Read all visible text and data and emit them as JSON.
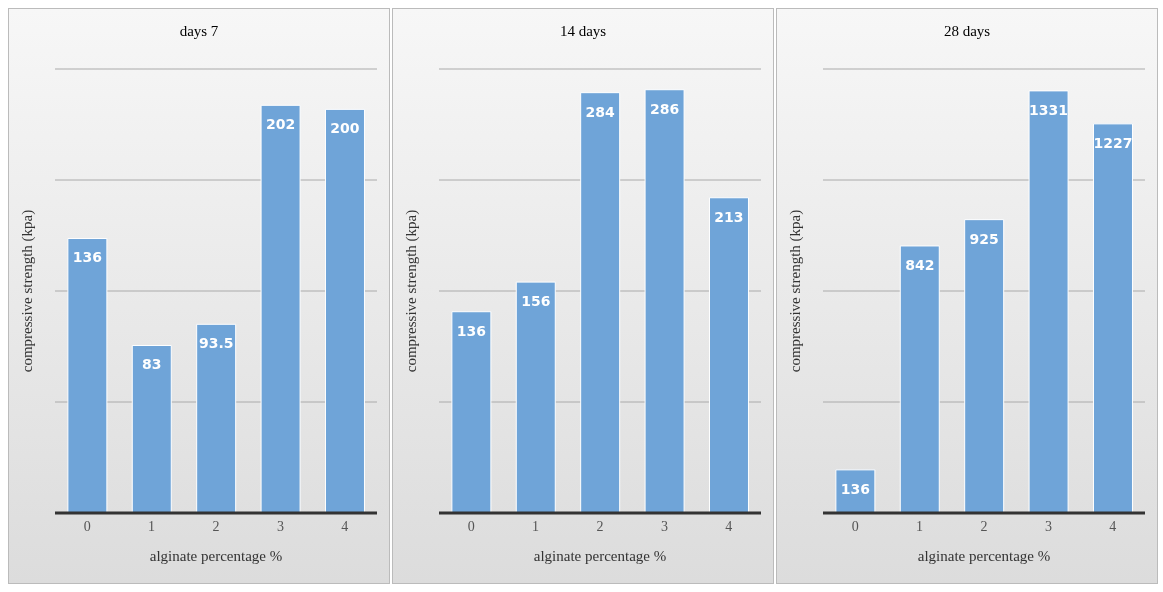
{
  "chart_data": [
    {
      "type": "bar",
      "title": "days 7",
      "xlabel": "alginate  percentage %",
      "ylabel": "compressive strength (kpa)",
      "categories": [
        "0",
        "1",
        "2",
        "3",
        "4"
      ],
      "values": [
        136,
        83,
        93.5,
        202,
        200
      ],
      "color": "#6fa4d8",
      "grid": "y",
      "tick_labels": "x",
      "data_labels": true
    },
    {
      "type": "bar",
      "title": "14 days",
      "xlabel": "alginate  percentage %",
      "ylabel": "compressive  strength (kpa)",
      "categories": [
        "0",
        "1",
        "2",
        "3",
        "4"
      ],
      "values": [
        136,
        156,
        284,
        286,
        213
      ],
      "color": "#6fa4d8",
      "grid": "y",
      "tick_labels": "x",
      "data_labels": true
    },
    {
      "type": "bar",
      "title": "28 days",
      "xlabel": "alginate  percentage %",
      "ylabel": "compressive strength (kpa)",
      "categories": [
        "0",
        "1",
        "2",
        "3",
        "4"
      ],
      "values": [
        136,
        842,
        925,
        1331,
        1227
      ],
      "color": "#6fa4d8",
      "grid": "y",
      "tick_labels": "x",
      "data_labels": true
    }
  ]
}
